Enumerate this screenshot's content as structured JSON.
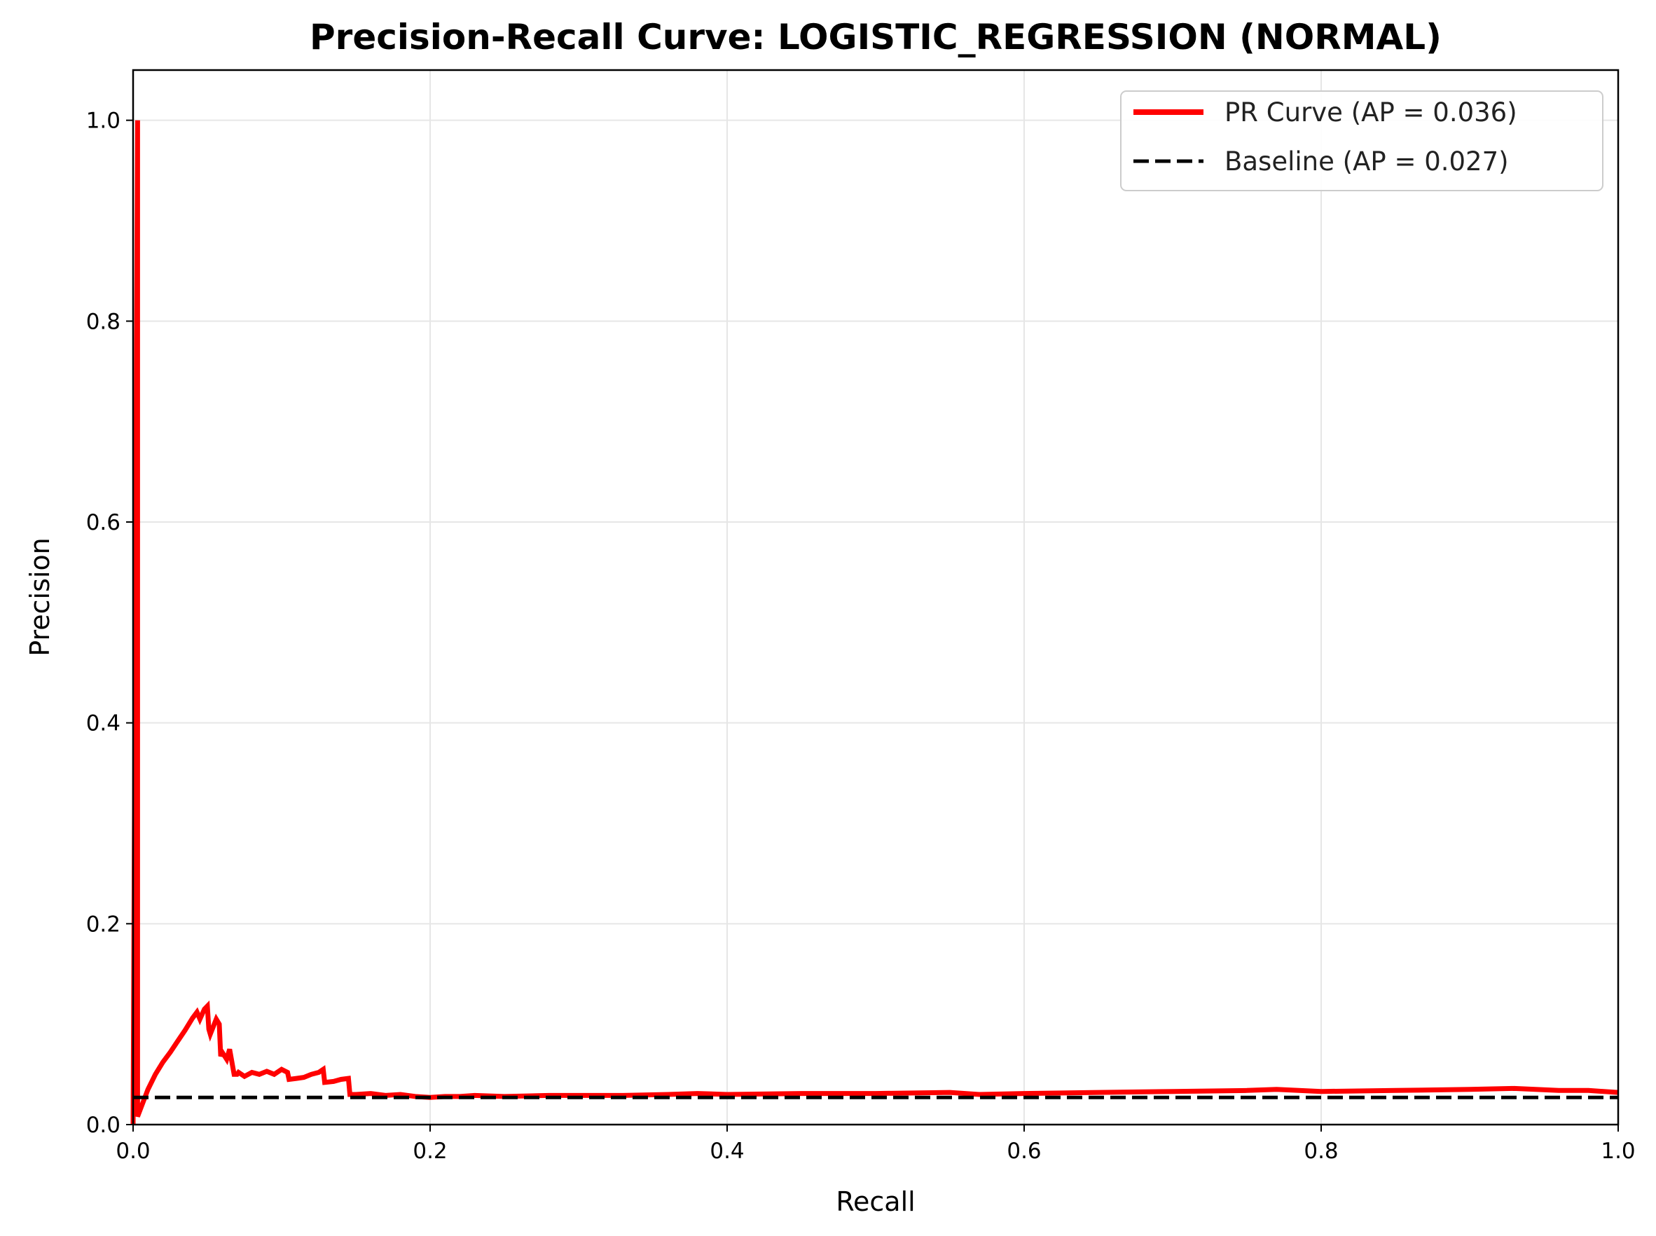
{
  "chart_data": {
    "type": "line",
    "title": "Precision-Recall Curve: LOGISTIC_REGRESSION (NORMAL)",
    "xlabel": "Recall",
    "ylabel": "Precision",
    "xlim": [
      0.0,
      1.0
    ],
    "ylim": [
      0.0,
      1.05
    ],
    "xticks": [
      "0.0",
      "0.2",
      "0.4",
      "0.6",
      "0.8",
      "1.0"
    ],
    "yticks": [
      "0.0",
      "0.2",
      "0.4",
      "0.6",
      "0.8",
      "1.0"
    ],
    "grid": true,
    "legend_position": "top-right",
    "series": [
      {
        "name": "PR Curve (AP = 0.036)",
        "color": "#ff0000",
        "style": "solid",
        "x": [
          0.0,
          0.003,
          0.003,
          0.01,
          0.015,
          0.02,
          0.025,
          0.03,
          0.035,
          0.04,
          0.043,
          0.045,
          0.048,
          0.05,
          0.051,
          0.052,
          0.056,
          0.058,
          0.059,
          0.06,
          0.063,
          0.065,
          0.068,
          0.07,
          0.071,
          0.075,
          0.08,
          0.085,
          0.09,
          0.095,
          0.1,
          0.104,
          0.105,
          0.11,
          0.115,
          0.12,
          0.125,
          0.128,
          0.129,
          0.135,
          0.14,
          0.145,
          0.146,
          0.15,
          0.16,
          0.17,
          0.18,
          0.19,
          0.2,
          0.21,
          0.22,
          0.23,
          0.25,
          0.28,
          0.3,
          0.33,
          0.36,
          0.38,
          0.4,
          0.45,
          0.5,
          0.55,
          0.57,
          0.6,
          0.65,
          0.7,
          0.75,
          0.77,
          0.8,
          0.85,
          0.9,
          0.93,
          0.96,
          0.98,
          1.0
        ],
        "y": [
          0.0,
          1.0,
          0.008,
          0.035,
          0.05,
          0.062,
          0.072,
          0.083,
          0.094,
          0.106,
          0.112,
          0.105,
          0.115,
          0.118,
          0.095,
          0.09,
          0.105,
          0.1,
          0.068,
          0.072,
          0.065,
          0.075,
          0.05,
          0.05,
          0.052,
          0.048,
          0.052,
          0.05,
          0.053,
          0.05,
          0.055,
          0.052,
          0.045,
          0.046,
          0.047,
          0.05,
          0.052,
          0.055,
          0.042,
          0.043,
          0.045,
          0.046,
          0.03,
          0.03,
          0.031,
          0.029,
          0.03,
          0.028,
          0.027,
          0.028,
          0.028,
          0.029,
          0.028,
          0.029,
          0.029,
          0.029,
          0.03,
          0.031,
          0.03,
          0.031,
          0.031,
          0.032,
          0.03,
          0.031,
          0.032,
          0.033,
          0.034,
          0.035,
          0.033,
          0.034,
          0.035,
          0.036,
          0.034,
          0.034,
          0.032
        ]
      },
      {
        "name": "Baseline (AP = 0.027)",
        "color": "#000000",
        "style": "dashed",
        "x": [
          0.0,
          1.0
        ],
        "y": [
          0.027,
          0.027
        ]
      }
    ]
  }
}
